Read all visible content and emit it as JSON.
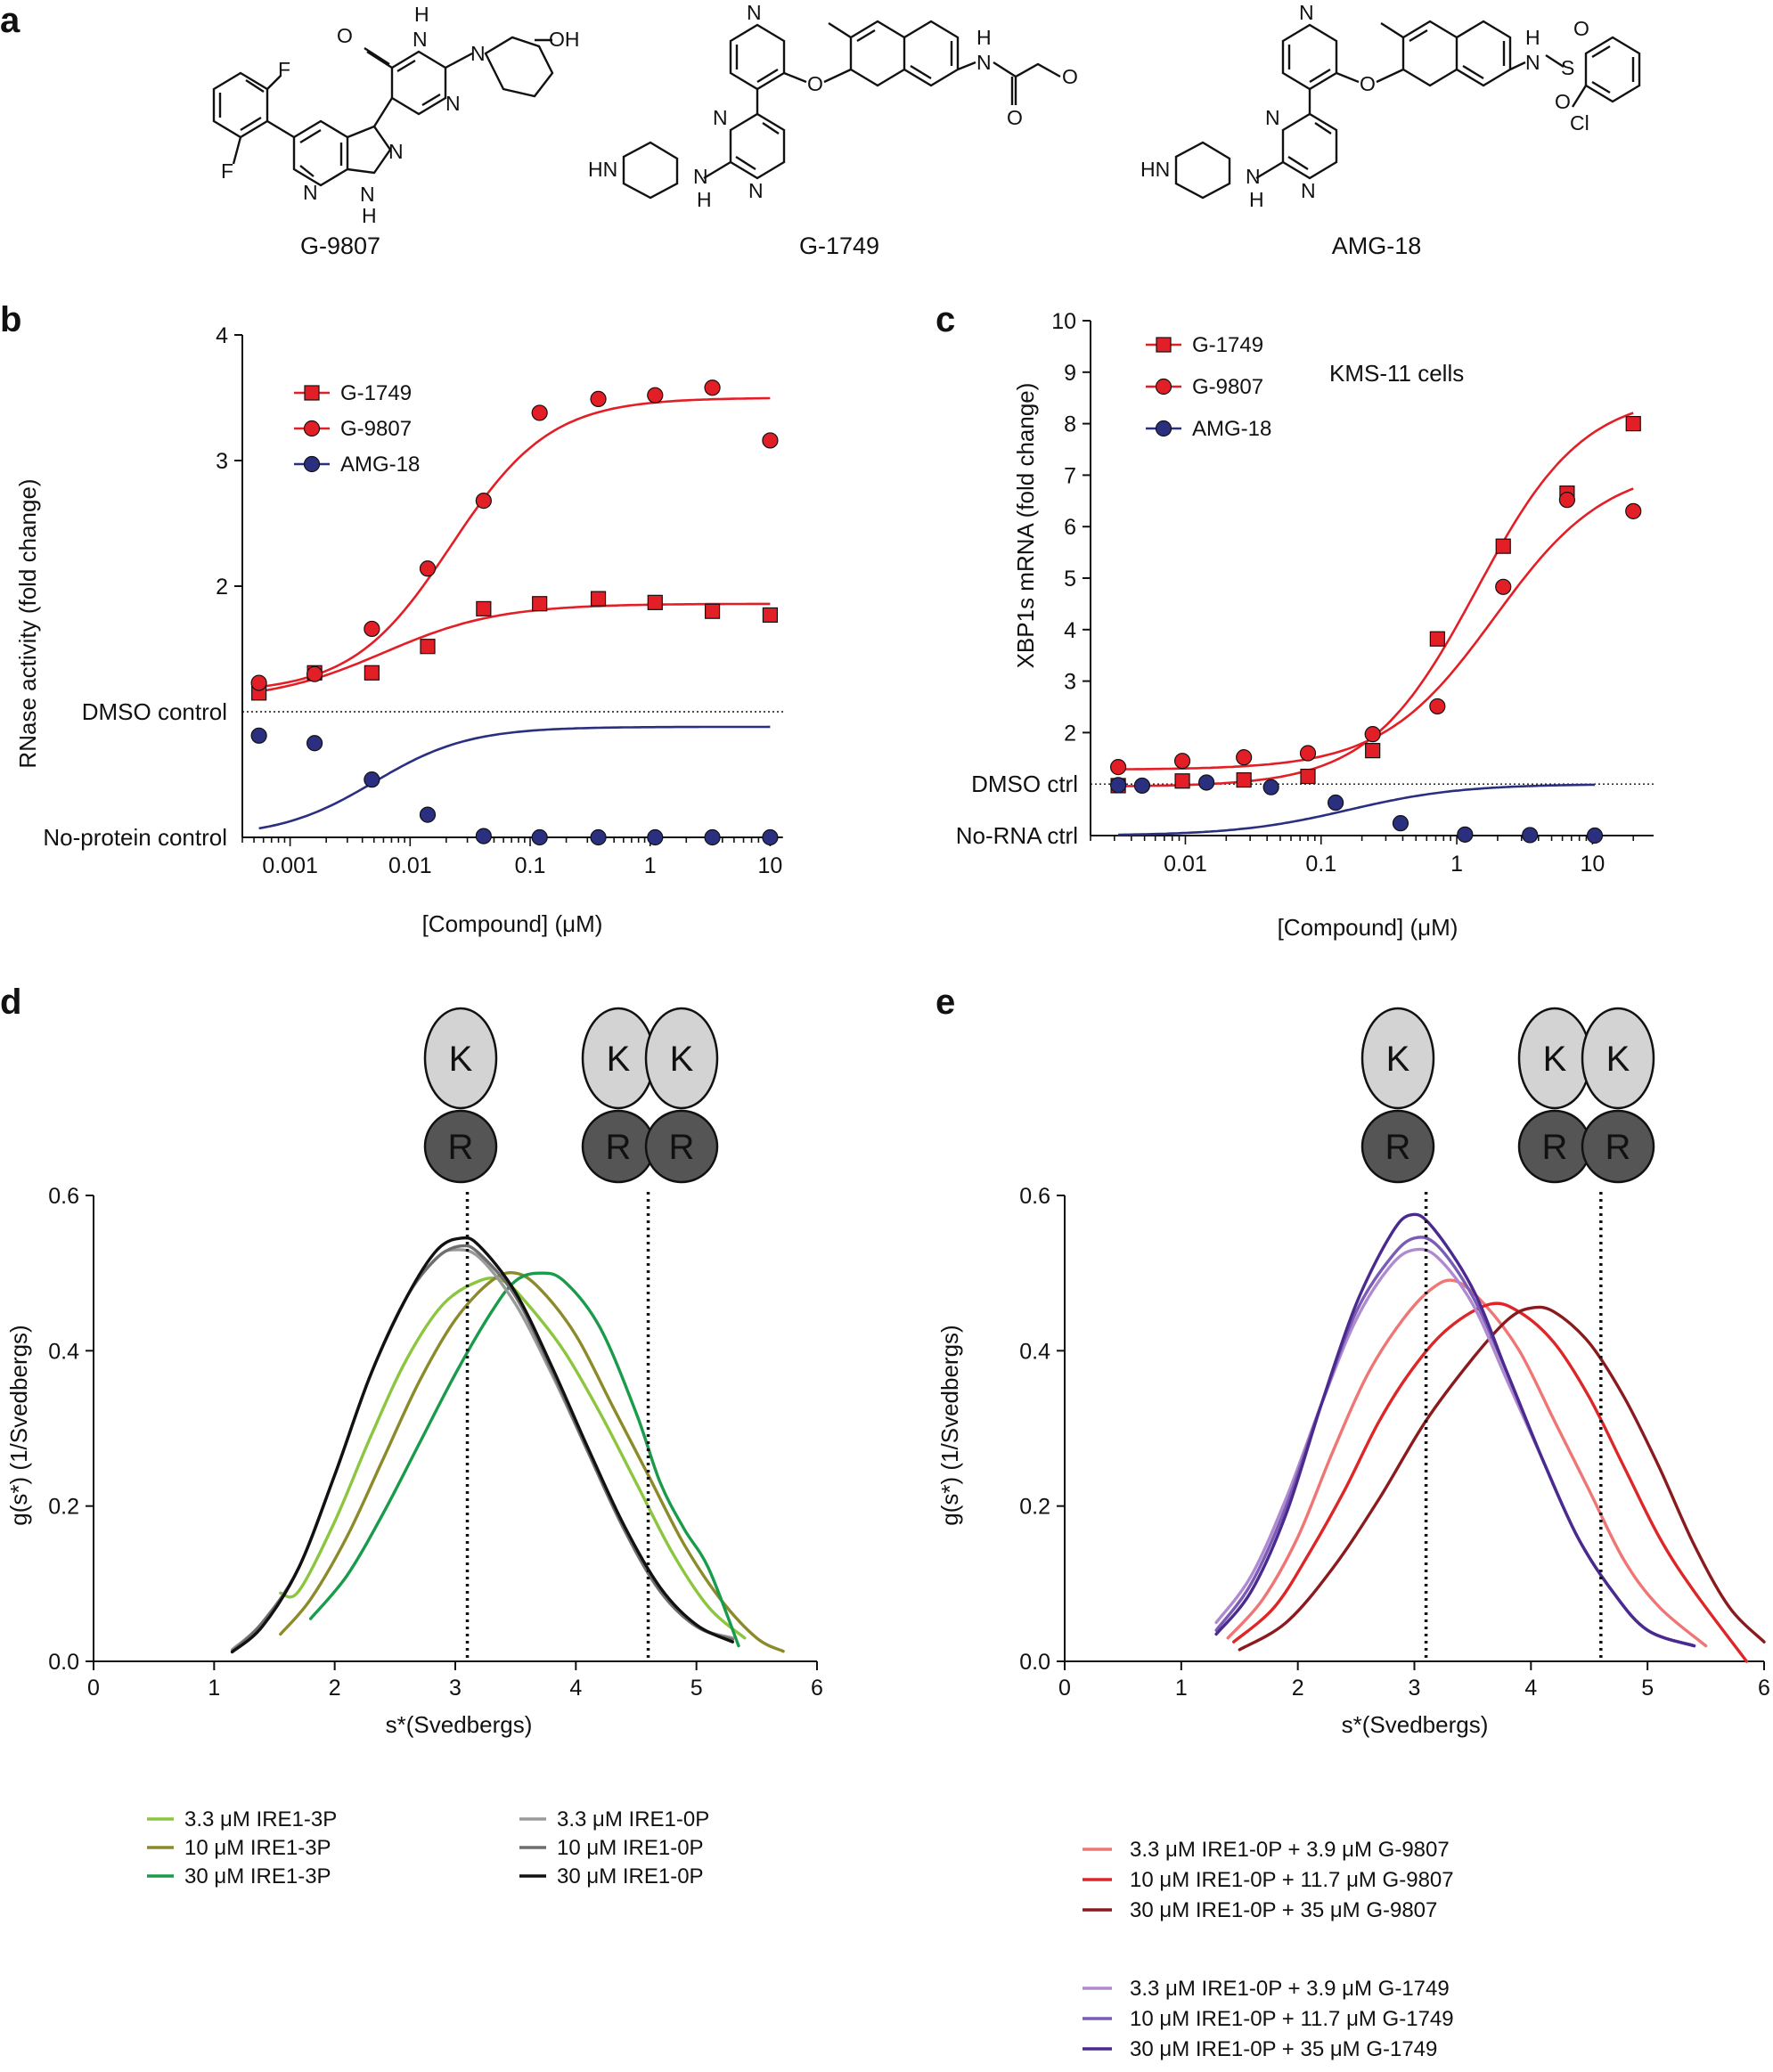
{
  "panel_labels": {
    "a": "a",
    "b": "b",
    "c": "c",
    "d": "d",
    "e": "e"
  },
  "colors": {
    "red": "#e21f26",
    "navy": "#2b2f7f",
    "green_light": "#8cc63f",
    "green_olive": "#8c8a2a",
    "green_dark": "#1a9b4b",
    "gray_light": "#9a9a9a",
    "gray_mid": "#6e6e6e",
    "black": "#111111",
    "pink": "#f07575",
    "red_mid": "#de2528",
    "maroon": "#8b1a1e",
    "lavender": "#b08ad0",
    "purple_mid": "#7a5bb5",
    "purple_dark": "#4a2a8f",
    "kinase_fill": "#d3d3d3",
    "rnase_fill": "#555555"
  },
  "compounds": [
    {
      "name": "G-9807",
      "atoms": [
        "O",
        "H",
        "N",
        "N",
        "N",
        "OH",
        "F",
        "F",
        "N",
        "N",
        "N",
        "H"
      ]
    },
    {
      "name": "G-1749",
      "atoms": [
        "N",
        "O",
        "H",
        "N",
        "O",
        "O",
        "HN",
        "N",
        "N",
        "N",
        "H"
      ]
    },
    {
      "name": "AMG-18",
      "atoms": [
        "N",
        "O",
        "H",
        "N",
        "S",
        "O",
        "O",
        "Cl",
        "HN",
        "N",
        "N",
        "N",
        "H"
      ]
    }
  ],
  "domain_icons": {
    "kinase": "K",
    "rnase": "R"
  },
  "chart_data": [
    {
      "id": "b",
      "type": "scatter",
      "xlabel": "[Compound] (μM)",
      "ylabel": "RNase activity (fold change)",
      "xscale": "log",
      "xlim": [
        0.0004,
        11
      ],
      "ylim": [
        0,
        4
      ],
      "xticks": [
        0.001,
        0.01,
        0.1,
        1,
        10
      ],
      "xtick_labels": [
        "0.001",
        "0.01",
        "0.1",
        "1",
        "10"
      ],
      "yticks": [
        2,
        3,
        4
      ],
      "ytick_labels": [
        "2",
        "3",
        "4"
      ],
      "reference_lines": [
        {
          "y": 1,
          "label": "DMSO control"
        },
        {
          "y": 0,
          "label": "No-protein control"
        }
      ],
      "legend_position": "top-left",
      "series": [
        {
          "name": "G-1749",
          "marker": "square",
          "color": "#e21f26",
          "x": [
            0.00055,
            0.0016,
            0.0048,
            0.014,
            0.041,
            0.12,
            0.37,
            1.1,
            3.3,
            10
          ],
          "y": [
            1.15,
            1.31,
            1.31,
            1.52,
            1.82,
            1.86,
            1.9,
            1.87,
            1.8,
            1.77
          ],
          "fit": {
            "bottom": 1.08,
            "top": 1.86,
            "ec50": 0.006,
            "hill": 0.9
          }
        },
        {
          "name": "G-9807",
          "marker": "circle",
          "color": "#e21f26",
          "x": [
            0.00055,
            0.0016,
            0.0048,
            0.014,
            0.041,
            0.12,
            0.37,
            1.1,
            3.3,
            10
          ],
          "y": [
            1.23,
            1.3,
            1.66,
            2.14,
            2.68,
            3.38,
            3.49,
            3.52,
            3.58,
            3.16
          ],
          "fit": {
            "bottom": 1.15,
            "top": 3.5,
            "ec50": 0.022,
            "hill": 1.05
          }
        },
        {
          "name": "AMG-18",
          "marker": "circle",
          "color": "#2b2f7f",
          "x": [
            0.00055,
            0.0016,
            0.0048,
            0.014,
            0.041,
            0.12,
            0.37,
            1.1,
            3.3,
            10
          ],
          "y": [
            0.81,
            0.75,
            0.46,
            0.18,
            0.01,
            0.0,
            0.0,
            0.0,
            0.0,
            0.0
          ],
          "fit": {
            "bottom": 0.0,
            "top": 0.88,
            "ec50": 0.005,
            "hill": 1.1
          }
        }
      ]
    },
    {
      "id": "c",
      "type": "scatter",
      "annotation": "KMS-11 cells",
      "xlabel": "[Compound] (μM)",
      "ylabel": "XBP1s mRNA (fold change)",
      "xscale": "log",
      "xlim": [
        0.002,
        25
      ],
      "ylim": [
        0,
        10
      ],
      "xticks": [
        0.01,
        0.1,
        1,
        10
      ],
      "xtick_labels": [
        "0.01",
        "0.1",
        "1",
        "10"
      ],
      "yticks": [
        2,
        3,
        4,
        5,
        6,
        7,
        8,
        9,
        10
      ],
      "ytick_labels": [
        "2",
        "3",
        "4",
        "5",
        "6",
        "7",
        "8",
        "9",
        "10"
      ],
      "reference_lines": [
        {
          "y": 1,
          "label": "DMSO ctrl"
        },
        {
          "y": 0,
          "label": "No-RNA ctrl"
        }
      ],
      "legend_position": "top-left",
      "series": [
        {
          "name": "G-1749",
          "marker": "square",
          "color": "#e21f26",
          "x": [
            0.0032,
            0.0095,
            0.027,
            0.08,
            0.24,
            0.72,
            2.2,
            6.5,
            20
          ],
          "y": [
            0.97,
            1.06,
            1.08,
            1.15,
            1.65,
            3.82,
            5.62,
            6.65,
            8.0
          ],
          "fit": {
            "bottom": 0.95,
            "top": 8.6,
            "ec50": 1.4,
            "hill": 1.1
          }
        },
        {
          "name": "G-9807",
          "marker": "circle",
          "color": "#e21f26",
          "x": [
            0.0032,
            0.0095,
            0.027,
            0.08,
            0.24,
            0.72,
            2.2,
            6.5,
            20
          ],
          "y": [
            1.33,
            1.45,
            1.52,
            1.6,
            1.97,
            2.51,
            4.83,
            6.52,
            6.3
          ],
          "fit": {
            "bottom": 1.28,
            "top": 7.2,
            "ec50": 1.9,
            "hill": 1.05
          }
        },
        {
          "name": "AMG-18",
          "marker": "circle",
          "color": "#2b2f7f",
          "x": [
            0.0032,
            0.0048,
            0.0143,
            0.0428,
            0.128,
            0.385,
            1.15,
            3.46,
            10.4
          ],
          "y": [
            0.98,
            0.97,
            1.03,
            0.94,
            0.64,
            0.24,
            0.02,
            0.01,
            0.0
          ],
          "fit": {
            "bottom": 0.0,
            "top": 1.0,
            "ec50": 0.16,
            "hill": 1.05
          }
        }
      ]
    },
    {
      "id": "d",
      "type": "line",
      "xlabel": "s*(Svedbergs)",
      "ylabel": "g(s*) (1/Svedbergs)",
      "xlim": [
        0,
        6
      ],
      "ylim": [
        0,
        0.6
      ],
      "xticks": [
        0,
        1,
        2,
        3,
        4,
        5,
        6
      ],
      "xtick_labels": [
        "0",
        "1",
        "2",
        "3",
        "4",
        "5",
        "6"
      ],
      "yticks": [
        0.0,
        0.2,
        0.4,
        0.6
      ],
      "ytick_labels": [
        "0.0",
        "0.2",
        "0.4",
        "0.6"
      ],
      "vlines": [
        3.1,
        4.6
      ],
      "legend_position": "bottom",
      "series": [
        {
          "name": "3.3 μM IRE1-3P",
          "color": "#8cc63f",
          "x": [
            1.55,
            1.7,
            2.0,
            2.3,
            2.6,
            2.9,
            3.2,
            3.4,
            3.6,
            3.9,
            4.2,
            4.5,
            4.8,
            5.1,
            5.4
          ],
          "y": [
            0.088,
            0.09,
            0.18,
            0.29,
            0.39,
            0.46,
            0.49,
            0.49,
            0.46,
            0.4,
            0.32,
            0.23,
            0.14,
            0.07,
            0.03
          ]
        },
        {
          "name": "10 μM IRE1-3P",
          "color": "#8c8a2a",
          "x": [
            1.55,
            1.8,
            2.1,
            2.4,
            2.7,
            3.0,
            3.3,
            3.5,
            3.7,
            4.0,
            4.3,
            4.6,
            4.9,
            5.2,
            5.5,
            5.72
          ],
          "y": [
            0.035,
            0.08,
            0.16,
            0.26,
            0.36,
            0.44,
            0.49,
            0.5,
            0.48,
            0.42,
            0.33,
            0.24,
            0.15,
            0.08,
            0.03,
            0.013
          ]
        },
        {
          "name": "30 μM IRE1-3P",
          "color": "#1a9b4b",
          "x": [
            1.8,
            2.1,
            2.4,
            2.7,
            3.0,
            3.3,
            3.5,
            3.7,
            3.9,
            4.2,
            4.5,
            4.7,
            4.9,
            5.1,
            5.35
          ],
          "y": [
            0.055,
            0.11,
            0.19,
            0.28,
            0.37,
            0.45,
            0.49,
            0.5,
            0.49,
            0.43,
            0.32,
            0.23,
            0.17,
            0.12,
            0.02
          ]
        },
        {
          "name": "3.3 μM IRE1-0P",
          "color": "#9a9a9a",
          "x": [
            1.15,
            1.4,
            1.7,
            2.0,
            2.3,
            2.6,
            2.85,
            3.0,
            3.2,
            3.5,
            3.8,
            4.1,
            4.4,
            4.7,
            5.0,
            5.3
          ],
          "y": [
            0.015,
            0.05,
            0.12,
            0.24,
            0.37,
            0.47,
            0.52,
            0.53,
            0.52,
            0.46,
            0.37,
            0.27,
            0.17,
            0.09,
            0.045,
            0.03
          ]
        },
        {
          "name": "10 μM IRE1-0P",
          "color": "#6e6e6e",
          "x": [
            1.15,
            1.4,
            1.7,
            2.0,
            2.3,
            2.6,
            2.85,
            3.05,
            3.2,
            3.5,
            3.8,
            4.1,
            4.4,
            4.7,
            5.0,
            5.3
          ],
          "y": [
            0.013,
            0.05,
            0.12,
            0.24,
            0.37,
            0.47,
            0.52,
            0.535,
            0.525,
            0.47,
            0.375,
            0.27,
            0.17,
            0.09,
            0.045,
            0.028
          ]
        },
        {
          "name": "30 μM IRE1-0P",
          "color": "#111111",
          "x": [
            1.15,
            1.4,
            1.7,
            2.0,
            2.3,
            2.6,
            2.85,
            3.05,
            3.2,
            3.5,
            3.8,
            4.1,
            4.4,
            4.7,
            5.0,
            5.3
          ],
          "y": [
            0.012,
            0.045,
            0.12,
            0.24,
            0.37,
            0.47,
            0.53,
            0.545,
            0.535,
            0.475,
            0.38,
            0.275,
            0.175,
            0.095,
            0.047,
            0.025
          ]
        }
      ]
    },
    {
      "id": "e",
      "type": "line",
      "xlabel": "s*(Svedbergs)",
      "ylabel": "g(s*) (1/Svedbergs)",
      "xlim": [
        0,
        6
      ],
      "ylim": [
        0,
        0.6
      ],
      "xticks": [
        0,
        1,
        2,
        3,
        4,
        5,
        6
      ],
      "xtick_labels": [
        "0",
        "1",
        "2",
        "3",
        "4",
        "5",
        "6"
      ],
      "yticks": [
        0.0,
        0.2,
        0.4,
        0.6
      ],
      "ytick_labels": [
        "0.0",
        "0.2",
        "0.4",
        "0.6"
      ],
      "vlines": [
        3.1,
        4.6
      ],
      "legend_position": "bottom",
      "series": [
        {
          "name": "3.3 μM IRE1-0P + 3.9 μM G-9807",
          "color": "#f07575",
          "x": [
            1.4,
            1.7,
            2.0,
            2.3,
            2.6,
            2.9,
            3.15,
            3.35,
            3.6,
            3.9,
            4.2,
            4.5,
            4.8,
            5.1,
            5.5
          ],
          "y": [
            0.03,
            0.08,
            0.16,
            0.27,
            0.37,
            0.44,
            0.48,
            0.49,
            0.46,
            0.4,
            0.31,
            0.22,
            0.13,
            0.07,
            0.02
          ]
        },
        {
          "name": "10 μM IRE1-0P + 11.7 μM G-9807",
          "color": "#de2528",
          "x": [
            1.45,
            1.8,
            2.1,
            2.4,
            2.7,
            3.0,
            3.3,
            3.65,
            3.9,
            4.2,
            4.5,
            4.8,
            5.1,
            5.4,
            5.85
          ],
          "y": [
            0.025,
            0.07,
            0.14,
            0.22,
            0.31,
            0.38,
            0.43,
            0.46,
            0.45,
            0.41,
            0.34,
            0.25,
            0.16,
            0.09,
            0.0
          ]
        },
        {
          "name": "30 μM IRE1-0P + 35 μM G-9807",
          "color": "#8b1a1e",
          "x": [
            1.5,
            1.9,
            2.3,
            2.7,
            3.1,
            3.5,
            3.8,
            4.0,
            4.2,
            4.5,
            4.8,
            5.1,
            5.4,
            5.7,
            6.0
          ],
          "y": [
            0.015,
            0.05,
            0.12,
            0.21,
            0.31,
            0.39,
            0.44,
            0.455,
            0.45,
            0.41,
            0.34,
            0.25,
            0.15,
            0.07,
            0.025
          ]
        },
        {
          "name": "3.3 μM IRE1-0P + 3.9 μM G-1749",
          "color": "#b08ad0",
          "x": [
            1.3,
            1.6,
            1.9,
            2.2,
            2.5,
            2.8,
            3.0,
            3.2,
            3.5,
            3.8,
            4.1,
            4.4,
            4.7,
            5.0,
            5.4
          ],
          "y": [
            0.05,
            0.11,
            0.21,
            0.33,
            0.44,
            0.51,
            0.53,
            0.52,
            0.46,
            0.36,
            0.26,
            0.16,
            0.09,
            0.04,
            0.02
          ]
        },
        {
          "name": "10 μM IRE1-0P + 11.7 μM G-1749",
          "color": "#7a5bb5",
          "x": [
            1.3,
            1.6,
            1.9,
            2.2,
            2.5,
            2.8,
            3.0,
            3.2,
            3.5,
            3.8,
            4.1,
            4.4,
            4.7,
            5.0,
            5.4
          ],
          "y": [
            0.04,
            0.1,
            0.2,
            0.33,
            0.45,
            0.52,
            0.545,
            0.535,
            0.47,
            0.37,
            0.26,
            0.16,
            0.09,
            0.04,
            0.02
          ]
        },
        {
          "name": "30 μM IRE1-0P + 35 μM G-1749",
          "color": "#4a2a8f",
          "x": [
            1.3,
            1.6,
            1.9,
            2.2,
            2.5,
            2.8,
            2.97,
            3.15,
            3.5,
            3.8,
            4.1,
            4.4,
            4.7,
            5.0,
            5.4
          ],
          "y": [
            0.035,
            0.09,
            0.19,
            0.33,
            0.46,
            0.55,
            0.575,
            0.56,
            0.48,
            0.37,
            0.26,
            0.16,
            0.09,
            0.04,
            0.02
          ]
        }
      ]
    }
  ]
}
